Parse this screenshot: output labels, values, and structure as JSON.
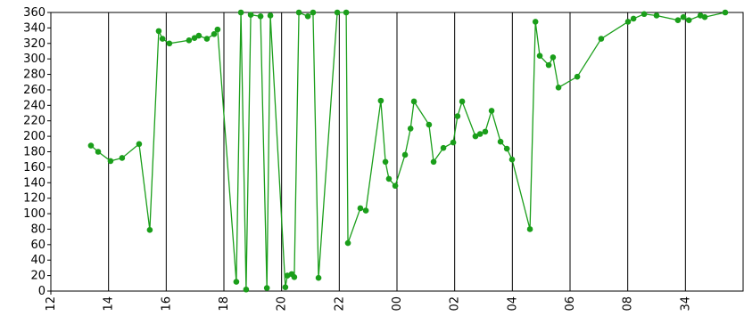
{
  "chart_data": {
    "type": "line",
    "x": [
      13.39,
      13.64,
      14.07,
      14.47,
      15.06,
      15.43,
      15.74,
      15.87,
      16.11,
      16.79,
      16.98,
      17.13,
      17.41,
      17.66,
      17.78,
      18.43,
      18.59,
      18.77,
      18.93,
      19.27,
      19.49,
      19.61,
      20.13,
      20.2,
      20.35,
      20.44,
      20.6,
      20.91,
      21.09,
      21.28,
      21.93,
      22.24,
      22.3,
      22.73,
      22.92,
      23.44,
      23.6,
      23.72,
      23.94,
      24.28,
      24.47,
      24.59,
      25.11,
      25.27,
      25.61,
      25.95,
      26.1,
      26.26,
      26.72,
      26.88,
      27.06,
      27.28,
      27.59,
      27.81,
      27.99,
      28.61,
      28.8,
      28.95,
      29.26,
      29.41,
      29.6,
      30.25,
      31.08,
      32.01,
      32.2,
      32.57,
      33,
      33.74,
      33.93,
      34.12,
      34.52,
      34.67,
      35.38
    ],
    "series": [
      {
        "color": "#1a9e1a",
        "values": [
          188,
          180,
          168,
          172,
          190,
          79,
          336,
          326,
          320,
          324,
          327,
          330,
          326,
          332,
          338,
          12,
          360,
          2,
          357,
          355,
          4,
          356,
          5,
          20,
          22,
          18,
          360,
          355,
          360,
          17,
          360,
          360,
          62,
          107,
          104,
          246,
          167,
          145,
          136,
          176,
          210,
          245,
          215,
          167,
          185,
          192,
          226,
          245,
          200,
          203,
          206,
          233,
          193,
          184,
          170,
          80,
          348,
          304,
          292,
          302,
          263,
          277,
          326,
          348,
          352,
          358,
          356,
          350,
          354,
          350,
          356,
          354,
          360
        ]
      }
    ],
    "xlim": [
      12,
      36
    ],
    "xticks": [
      12,
      14,
      16,
      18,
      20,
      22,
      {
        "value": 24,
        "label": "00"
      },
      {
        "value": 26,
        "label": "02"
      },
      {
        "value": 28,
        "label": "04"
      },
      {
        "value": 30,
        "label": "06"
      },
      {
        "value": 32,
        "label": "08"
      },
      34
    ],
    "ylim": [
      0,
      360
    ],
    "yticks": [
      0,
      20,
      40,
      60,
      80,
      100,
      120,
      140,
      160,
      180,
      200,
      220,
      240,
      260,
      280,
      300,
      320,
      340,
      360
    ],
    "grid": "x"
  }
}
